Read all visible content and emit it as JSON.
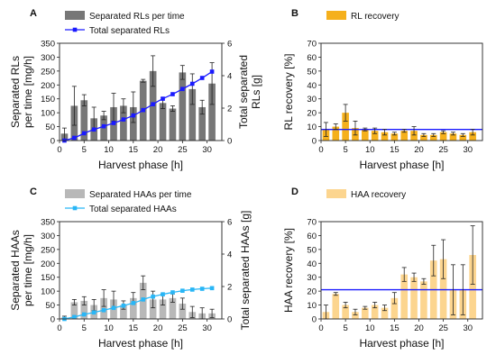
{
  "chart_data": [
    {
      "panel": "A",
      "type": "bar+line",
      "xlabel": "Harvest phase [h]",
      "ylabel": "Separated RLs per time [mg/h]",
      "ylabel_lines": [
        "Separated RLs",
        "per time [mg/h]"
      ],
      "y2label": "Total separated RLs [g]",
      "y2label_lines": [
        "Total separated",
        "RLs [g]"
      ],
      "xlim": [
        0,
        33
      ],
      "ylim": [
        0,
        350
      ],
      "y2lim": [
        0,
        6
      ],
      "xticks": [
        0,
        5,
        10,
        15,
        20,
        25,
        30
      ],
      "yticks": [
        0,
        50,
        100,
        150,
        200,
        250,
        300,
        350
      ],
      "y2ticks": [
        0,
        2,
        4,
        6
      ],
      "legend": [
        "Separated RLs per time",
        "Total separated RLs"
      ],
      "bar_color": "#777777",
      "line_color": "#1a1aff",
      "bars": {
        "x": [
          1,
          3,
          5,
          7,
          9,
          11,
          13,
          15,
          17,
          19,
          21,
          23,
          25,
          27,
          29,
          31
        ],
        "values": [
          25,
          125,
          145,
          80,
          90,
          120,
          125,
          120,
          215,
          250,
          135,
          115,
          245,
          185,
          120,
          205
        ],
        "errors": [
          20,
          70,
          20,
          40,
          15,
          50,
          25,
          55,
          5,
          55,
          20,
          10,
          25,
          55,
          25,
          75
        ]
      },
      "line": {
        "x": [
          1,
          2,
          3,
          4,
          5,
          6,
          7,
          8,
          9,
          10,
          11,
          12,
          13,
          14,
          15,
          16,
          17,
          18,
          19,
          20,
          21,
          22,
          23,
          24,
          25,
          26,
          27,
          28,
          29,
          30,
          31
        ],
        "values": [
          0.0,
          0.08,
          0.17,
          0.3,
          0.45,
          0.57,
          0.68,
          0.78,
          0.88,
          0.98,
          1.08,
          1.18,
          1.3,
          1.42,
          1.55,
          1.7,
          1.88,
          2.06,
          2.24,
          2.42,
          2.58,
          2.72,
          2.86,
          3.02,
          3.18,
          3.34,
          3.5,
          3.68,
          3.86,
          4.05,
          4.25
        ]
      }
    },
    {
      "panel": "B",
      "type": "bar",
      "xlabel": "Harvest phase [h]",
      "ylabel": "RL recovery [%]",
      "xlim": [
        0,
        33
      ],
      "ylim": [
        0,
        70
      ],
      "xticks": [
        0,
        5,
        10,
        15,
        20,
        25,
        30
      ],
      "yticks": [
        0,
        10,
        20,
        30,
        40,
        50,
        60,
        70
      ],
      "legend": [
        "RL recovery"
      ],
      "bar_color": "#f5b01c",
      "mean_line_color": "#1a1aff",
      "mean_line": 8,
      "bars": {
        "x": [
          1,
          3,
          5,
          7,
          9,
          11,
          13,
          15,
          17,
          19,
          21,
          23,
          25,
          27,
          29,
          31
        ],
        "values": [
          8,
          10,
          20,
          9,
          8,
          7,
          6,
          5,
          7,
          7,
          4,
          4,
          6,
          5,
          4,
          6
        ],
        "errors": [
          5,
          2,
          6,
          5,
          1,
          2,
          2,
          1,
          1,
          3,
          1,
          1,
          1,
          1,
          1,
          2
        ]
      }
    },
    {
      "panel": "C",
      "type": "bar+line",
      "xlabel": "Harvest phase [h]",
      "ylabel": "Separated HAAs per time [mg/h]",
      "ylabel_lines": [
        "Separated HAAs",
        "per time [mg/h]"
      ],
      "y2label": "Total separated HAAs [g]",
      "y2label_lines": [
        "Total separated HAAs [g]"
      ],
      "xlim": [
        0,
        33
      ],
      "ylim": [
        0,
        350
      ],
      "y2lim": [
        0,
        6
      ],
      "xticks": [
        0,
        5,
        10,
        15,
        20,
        25,
        30
      ],
      "yticks": [
        0,
        50,
        100,
        150,
        200,
        250,
        300,
        350
      ],
      "y2ticks": [
        0,
        2,
        4,
        6
      ],
      "legend": [
        "Separated HAAs per time",
        "Total separated HAAs"
      ],
      "bar_color": "#b8b8b8",
      "line_color": "#29b6f6",
      "bars": {
        "x": [
          1,
          3,
          5,
          7,
          9,
          11,
          13,
          15,
          17,
          19,
          21,
          23,
          25,
          27,
          29,
          31
        ],
        "values": [
          5,
          60,
          65,
          50,
          75,
          70,
          50,
          75,
          130,
          70,
          70,
          75,
          55,
          25,
          20,
          20
        ],
        "errors": [
          5,
          10,
          15,
          20,
          30,
          30,
          15,
          20,
          25,
          30,
          20,
          15,
          20,
          20,
          20,
          15
        ]
      },
      "line": {
        "x": [
          1,
          2,
          3,
          4,
          5,
          6,
          7,
          8,
          9,
          10,
          11,
          12,
          13,
          14,
          15,
          16,
          17,
          18,
          19,
          20,
          21,
          22,
          23,
          24,
          25,
          26,
          27,
          28,
          29,
          30,
          31
        ],
        "values": [
          0.0,
          0.06,
          0.12,
          0.2,
          0.28,
          0.34,
          0.4,
          0.47,
          0.54,
          0.61,
          0.68,
          0.75,
          0.82,
          0.9,
          0.98,
          1.08,
          1.2,
          1.3,
          1.38,
          1.45,
          1.52,
          1.58,
          1.64,
          1.69,
          1.74,
          1.78,
          1.81,
          1.84,
          1.86,
          1.88,
          1.9
        ]
      }
    },
    {
      "panel": "D",
      "type": "bar",
      "xlabel": "Harvest phase [h]",
      "ylabel": "HAA recovery [%]",
      "xlim": [
        0,
        33
      ],
      "ylim": [
        0,
        70
      ],
      "xticks": [
        0,
        5,
        10,
        15,
        20,
        25,
        30
      ],
      "yticks": [
        0,
        10,
        20,
        30,
        40,
        50,
        60,
        70
      ],
      "legend": [
        "HAA recovery"
      ],
      "bar_color": "#fcd58f",
      "mean_line_color": "#1a1aff",
      "mean_line": 21,
      "bars": {
        "x": [
          1,
          3,
          5,
          7,
          9,
          11,
          13,
          15,
          17,
          19,
          21,
          23,
          25,
          27,
          29,
          31
        ],
        "values": [
          5,
          18,
          10,
          5,
          8,
          10,
          8,
          15,
          32,
          30,
          27,
          42,
          43,
          21,
          21,
          46
        ],
        "errors": [
          5,
          1,
          2,
          2,
          1,
          2,
          2,
          4,
          5,
          3,
          2,
          11,
          14,
          18,
          18,
          21
        ]
      }
    }
  ]
}
